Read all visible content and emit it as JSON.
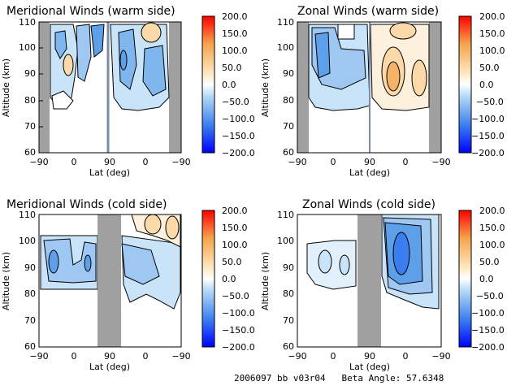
{
  "footer": {
    "id": "2006097 bb v03r04",
    "beta_label": "Beta Angle:",
    "beta_value": "57.6348"
  },
  "colorbar": {
    "range": [
      -200,
      200
    ],
    "ticks": [
      "200.0",
      "150.0",
      "100.0",
      "50.0",
      "0.0",
      "−50.0",
      "−100.0",
      "−150.0",
      "−200.0"
    ],
    "colors": [
      "#0000ff",
      "#3a7ef0",
      "#9ec8f2",
      "#ffffff",
      "#fde2b5",
      "#f5a24a",
      "#ff0000"
    ]
  },
  "chart_data": [
    {
      "type": "heatmap",
      "title": "Meridional Winds (warm side)",
      "xlabel": "Lat (deg)",
      "ylabel": "Altitude (km)",
      "ylim": [
        60,
        110
      ],
      "x_ticks": [
        "−90",
        "0",
        "90",
        "0",
        "−90"
      ],
      "y_ticks": [
        "60",
        "70",
        "80",
        "90",
        "100",
        "110"
      ],
      "masked_lat_bands": [
        "−90 to −82 (left edge)",
        "about −60 to −90 (right edge)"
      ],
      "features": [
        {
          "region": "left panel, 70–110 km",
          "approx_value_ms": -50
        },
        {
          "region": "left panel near 90 km",
          "approx_value_ms": 40
        },
        {
          "region": "right panel, 75–110 km",
          "approx_value_ms": -60
        },
        {
          "region": "right panel top near 105 km",
          "approx_value_ms": 50
        }
      ]
    },
    {
      "type": "heatmap",
      "title": "Zonal Winds (warm side)",
      "xlabel": "Lat (deg)",
      "ylabel": "Altitude (km)",
      "ylim": [
        60,
        110
      ],
      "x_ticks": [
        "−90",
        "0",
        "90",
        "0",
        "−90"
      ],
      "y_ticks": [
        "60",
        "70",
        "80",
        "90",
        "100",
        "110"
      ],
      "features": [
        {
          "region": "left panel, 75–110 km",
          "approx_value_ms": -60
        },
        {
          "region": "right panel centre near 90 km",
          "approx_value_ms": 90
        },
        {
          "region": "right panel upper near 100 km",
          "approx_value_ms": 40
        }
      ]
    },
    {
      "type": "heatmap",
      "title": "Meridional Winds (cold side)",
      "xlabel": "Lat (deg)",
      "ylabel": "Altitude (km)",
      "ylim": [
        60,
        110
      ],
      "x_ticks": [
        "−90",
        "0",
        "90",
        "0",
        "−90"
      ],
      "y_ticks": [
        "60",
        "70",
        "80",
        "90",
        "100",
        "110"
      ],
      "features": [
        {
          "region": "left band 83–103 km",
          "approx_value_ms": -50
        },
        {
          "region": "right side upper, 95–110 km",
          "approx_value_ms": 40
        },
        {
          "region": "right side lower, 75–95 km",
          "approx_value_ms": -30
        }
      ]
    },
    {
      "type": "heatmap",
      "title": "Zonal Winds (cold side)",
      "xlabel": "Lat (deg)",
      "ylabel": "Altitude (km)",
      "ylim": [
        60,
        110
      ],
      "x_ticks": [
        "−90",
        "0",
        "90",
        "0",
        "−90"
      ],
      "y_ticks": [
        "60",
        "70",
        "80",
        "90",
        "100",
        "110"
      ],
      "features": [
        {
          "region": "left patchy 85–100 km",
          "approx_value_ms": -30
        },
        {
          "region": "right side 80–110 km",
          "approx_value_ms": -80
        },
        {
          "region": "right side core near 95 km",
          "approx_value_ms": -120
        }
      ]
    }
  ]
}
